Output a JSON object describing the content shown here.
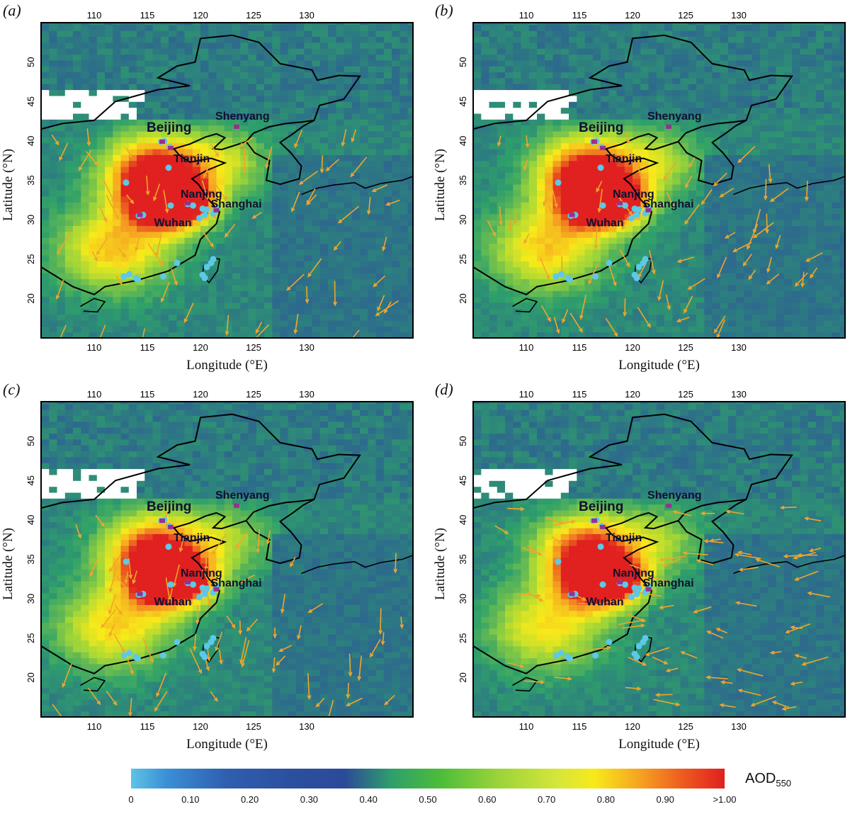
{
  "panels": [
    {
      "id": "a",
      "label": "(a)"
    },
    {
      "id": "b",
      "label": "(b)"
    },
    {
      "id": "c",
      "label": "(c)"
    },
    {
      "id": "d",
      "label": "(d)"
    }
  ],
  "axes": {
    "x_label": "Longitude (°E)",
    "y_label": "Latitude (°N)",
    "lon_ticks": [
      "110",
      "115",
      "120",
      "125",
      "130"
    ],
    "lat_ticks": [
      "20",
      "25",
      "30",
      "35",
      "40",
      "45",
      "50"
    ],
    "lon_range": [
      105,
      140
    ],
    "lat_range": [
      15,
      55
    ]
  },
  "cities": [
    {
      "name": "Beijing",
      "lon": 116.4,
      "lat": 39.9
    },
    {
      "name": "Tianjin",
      "lon": 117.2,
      "lat": 39.1
    },
    {
      "name": "Shenyang",
      "lon": 123.4,
      "lat": 41.8
    },
    {
      "name": "Nanjing",
      "lon": 118.8,
      "lat": 32.1
    },
    {
      "name": "Shanghai",
      "lon": 121.5,
      "lat": 31.2
    },
    {
      "name": "Wuhan",
      "lon": 114.3,
      "lat": 30.6
    }
  ],
  "colorbar": {
    "title": "AOD",
    "title_sub": "550",
    "ticks": [
      "0",
      "0.10",
      "0.20",
      "0.30",
      "0.40",
      "0.50",
      "0.60",
      "0.70",
      "0.80",
      "0.90",
      ">1.00"
    ],
    "range": [
      0,
      1.0
    ],
    "colors": [
      "#5ec3e6",
      "#2c4e9e",
      "#2ea06a",
      "#9cd43a",
      "#f7ea1a",
      "#f6a021",
      "#e02020"
    ]
  },
  "legend_colors": {
    "wind_arrow": "#f2a52a",
    "site_marker": "#5ec8e8",
    "city_marker": "#9b2f8f",
    "coastline": "#000000",
    "no_data": "#ffffff"
  }
}
